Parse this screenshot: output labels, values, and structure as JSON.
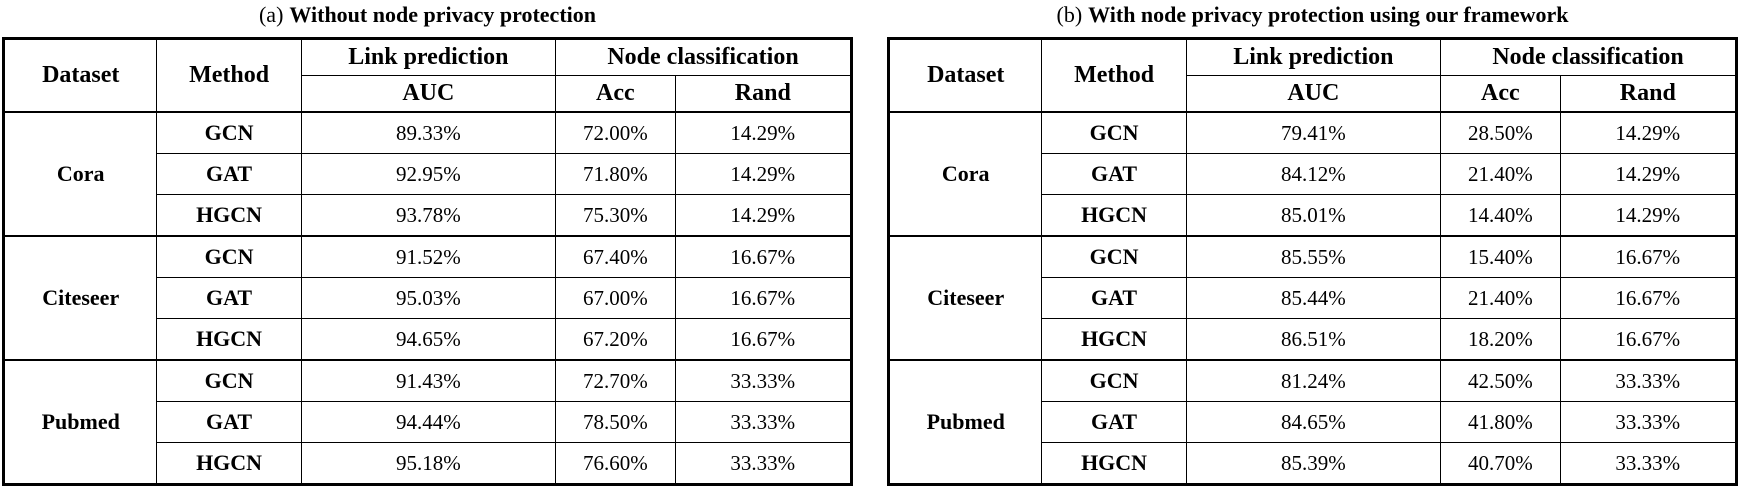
{
  "tables": [
    {
      "caption_prefix": "(a)",
      "caption": "Without node privacy protection",
      "headers": {
        "dataset": "Dataset",
        "method": "Method",
        "link_prediction": "Link prediction",
        "node_classification": "Node classification",
        "auc": "AUC",
        "acc": "Acc",
        "rand": "Rand"
      },
      "groups": [
        {
          "dataset": "Cora",
          "rows": [
            {
              "method": "GCN",
              "auc": "89.33%",
              "acc": "72.00%",
              "rand": "14.29%"
            },
            {
              "method": "GAT",
              "auc": "92.95%",
              "acc": "71.80%",
              "rand": "14.29%"
            },
            {
              "method": "HGCN",
              "auc": "93.78%",
              "acc": "75.30%",
              "rand": "14.29%"
            }
          ]
        },
        {
          "dataset": "Citeseer",
          "rows": [
            {
              "method": "GCN",
              "auc": "91.52%",
              "acc": "67.40%",
              "rand": "16.67%"
            },
            {
              "method": "GAT",
              "auc": "95.03%",
              "acc": "67.00%",
              "rand": "16.67%"
            },
            {
              "method": "HGCN",
              "auc": "94.65%",
              "acc": "67.20%",
              "rand": "16.67%"
            }
          ]
        },
        {
          "dataset": "Pubmed",
          "rows": [
            {
              "method": "GCN",
              "auc": "91.43%",
              "acc": "72.70%",
              "rand": "33.33%"
            },
            {
              "method": "GAT",
              "auc": "94.44%",
              "acc": "78.50%",
              "rand": "33.33%"
            },
            {
              "method": "HGCN",
              "auc": "95.18%",
              "acc": "76.60%",
              "rand": "33.33%"
            }
          ]
        }
      ]
    },
    {
      "caption_prefix": "(b)",
      "caption": "With node privacy protection using our framework",
      "headers": {
        "dataset": "Dataset",
        "method": "Method",
        "link_prediction": "Link prediction",
        "node_classification": "Node classification",
        "auc": "AUC",
        "acc": "Acc",
        "rand": "Rand"
      },
      "groups": [
        {
          "dataset": "Cora",
          "rows": [
            {
              "method": "GCN",
              "auc": "79.41%",
              "acc": "28.50%",
              "rand": "14.29%"
            },
            {
              "method": "GAT",
              "auc": "84.12%",
              "acc": "21.40%",
              "rand": "14.29%"
            },
            {
              "method": "HGCN",
              "auc": "85.01%",
              "acc": "14.40%",
              "rand": "14.29%"
            }
          ]
        },
        {
          "dataset": "Citeseer",
          "rows": [
            {
              "method": "GCN",
              "auc": "85.55%",
              "acc": "15.40%",
              "rand": "16.67%"
            },
            {
              "method": "GAT",
              "auc": "85.44%",
              "acc": "21.40%",
              "rand": "16.67%"
            },
            {
              "method": "HGCN",
              "auc": "86.51%",
              "acc": "18.20%",
              "rand": "16.67%"
            }
          ]
        },
        {
          "dataset": "Pubmed",
          "rows": [
            {
              "method": "GCN",
              "auc": "81.24%",
              "acc": "42.50%",
              "rand": "33.33%"
            },
            {
              "method": "GAT",
              "auc": "84.65%",
              "acc": "41.80%",
              "rand": "33.33%"
            },
            {
              "method": "HGCN",
              "auc": "85.39%",
              "acc": "40.70%",
              "rand": "33.33%"
            }
          ]
        }
      ]
    }
  ]
}
